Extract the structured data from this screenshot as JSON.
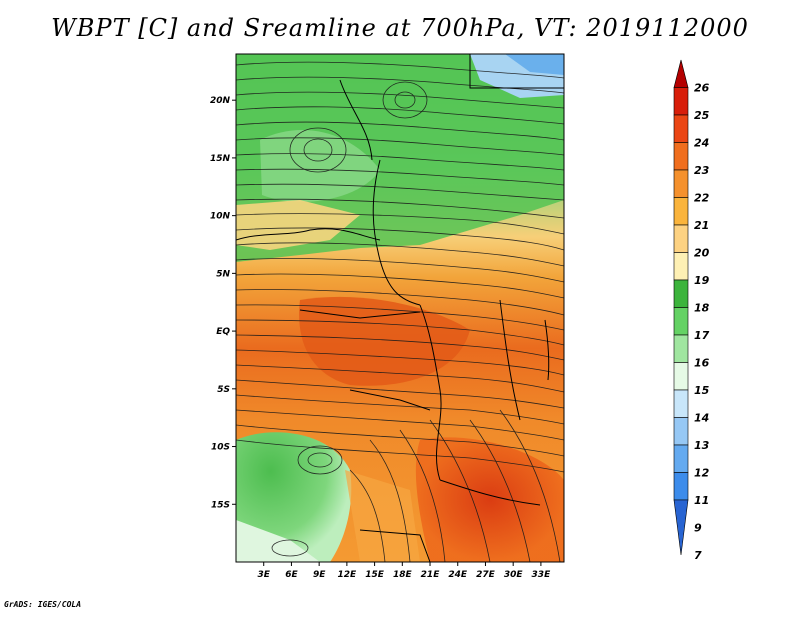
{
  "title": "WBPT [C] and Sreamline at 700hPa, VT: 2019112000",
  "credit": "GrADS: IGES/COLA",
  "map": {
    "lon_min": 0,
    "lon_max": 35.5,
    "lat_min": -20,
    "lat_max": 24,
    "lon_ticks": [
      {
        "v": 3,
        "label": "3E"
      },
      {
        "v": 6,
        "label": "6E"
      },
      {
        "v": 9,
        "label": "9E"
      },
      {
        "v": 12,
        "label": "12E"
      },
      {
        "v": 15,
        "label": "15E"
      },
      {
        "v": 18,
        "label": "18E"
      },
      {
        "v": 21,
        "label": "21E"
      },
      {
        "v": 24,
        "label": "24E"
      },
      {
        "v": 27,
        "label": "27E"
      },
      {
        "v": 30,
        "label": "30E"
      },
      {
        "v": 33,
        "label": "33E"
      }
    ],
    "lat_ticks": [
      {
        "v": 20,
        "label": "20N"
      },
      {
        "v": 15,
        "label": "15N"
      },
      {
        "v": 10,
        "label": "10N"
      },
      {
        "v": 5,
        "label": "5N"
      },
      {
        "v": 0,
        "label": "EQ"
      },
      {
        "v": -5,
        "label": "5S"
      },
      {
        "v": -10,
        "label": "10S"
      },
      {
        "v": -15,
        "label": "15S"
      }
    ]
  },
  "colorbar": {
    "labels": [
      "26",
      "25",
      "24",
      "23",
      "22",
      "21",
      "20",
      "19",
      "18",
      "17",
      "16",
      "15",
      "14",
      "13",
      "12",
      "11",
      "9",
      "7"
    ],
    "colors": [
      "#b40000",
      "#d81e0a",
      "#eb4614",
      "#f06e1e",
      "#f5912d",
      "#fab43c",
      "#fdd282",
      "#fef0b4",
      "#3cb43c",
      "#64d264",
      "#a0e6a0",
      "#e6fae6",
      "#c8e6fa",
      "#96c8f5",
      "#64aaf0",
      "#3c8ceb",
      "#2864d2"
    ]
  }
}
